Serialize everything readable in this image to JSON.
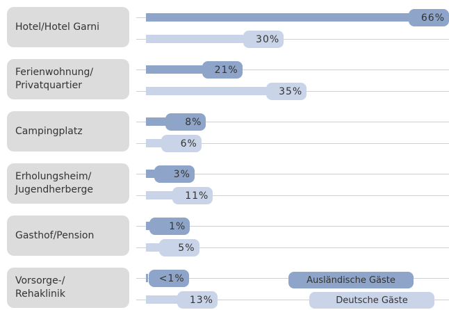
{
  "chart_data": {
    "type": "bar",
    "orientation": "horizontal",
    "categories": [
      "Hotel/Hotel Garni",
      "Ferienwohnung/\nPrivatquartier",
      "Campingplatz",
      "Erholungsheim/\nJugendherberge",
      "Gasthof/Pension",
      "Vorsorge-/\nRehaklinik"
    ],
    "series": [
      {
        "name": "Ausländische Gäste",
        "color": "#8ea4c8",
        "values": [
          66,
          21,
          8,
          3,
          1,
          0.5
        ],
        "value_labels": [
          "66%",
          "21%",
          "8%",
          "3%",
          "1%",
          "<1%"
        ]
      },
      {
        "name": "Deutsche Gäste",
        "color": "#c9d4e8",
        "values": [
          30,
          35,
          6,
          11,
          5,
          13
        ],
        "value_labels": [
          "30%",
          "35%",
          "6%",
          "11%",
          "5%",
          "13%"
        ]
      }
    ],
    "xlim": [
      0,
      66
    ],
    "legend": "lower right"
  }
}
